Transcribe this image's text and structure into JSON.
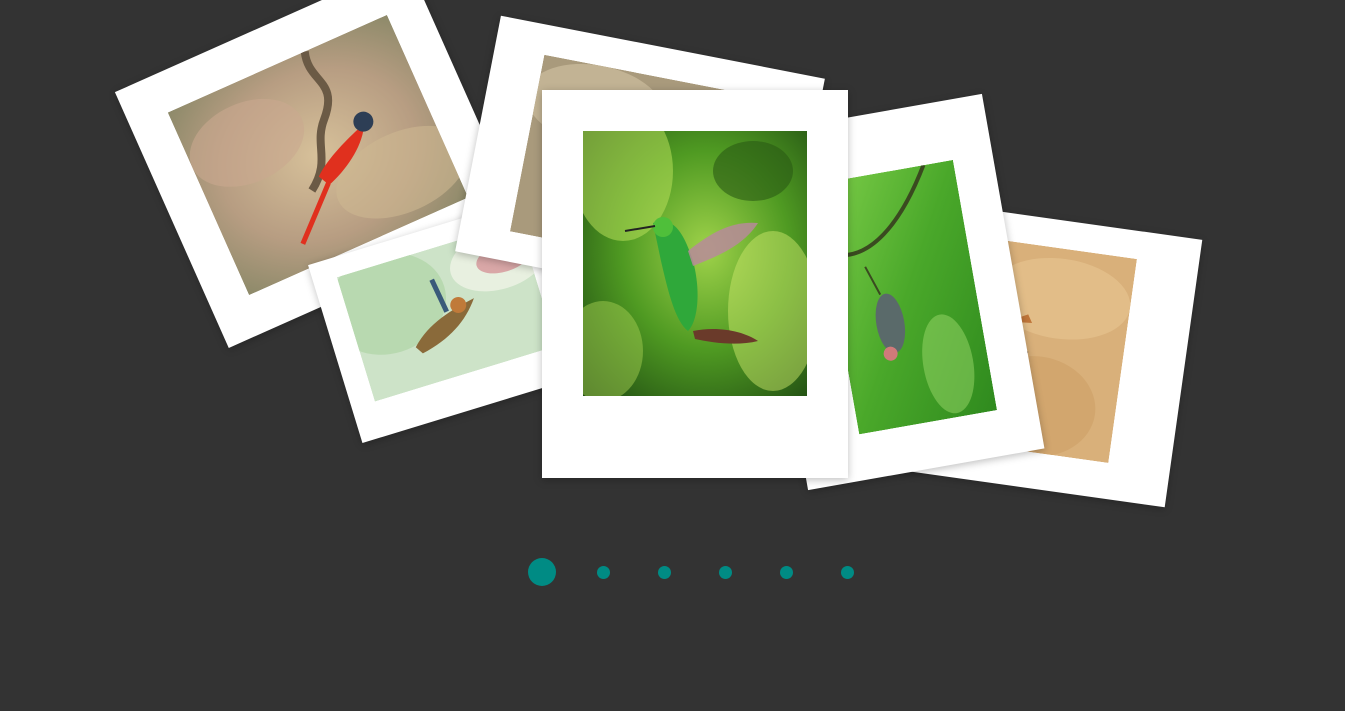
{
  "colors": {
    "background": "#333333",
    "card": "#ffffff",
    "dot": "#008b84"
  },
  "gallery": {
    "photos": [
      {
        "icon": "red-flycatcher-photo"
      },
      {
        "icon": "kingfisher-photo"
      },
      {
        "icon": "bird-photo-partial"
      },
      {
        "icon": "green-hummingbird-photo"
      },
      {
        "icon": "hanging-bird-photo"
      },
      {
        "icon": "bird-on-sand-photo"
      }
    ]
  },
  "pagination": {
    "count": 6,
    "active_index": 0
  }
}
